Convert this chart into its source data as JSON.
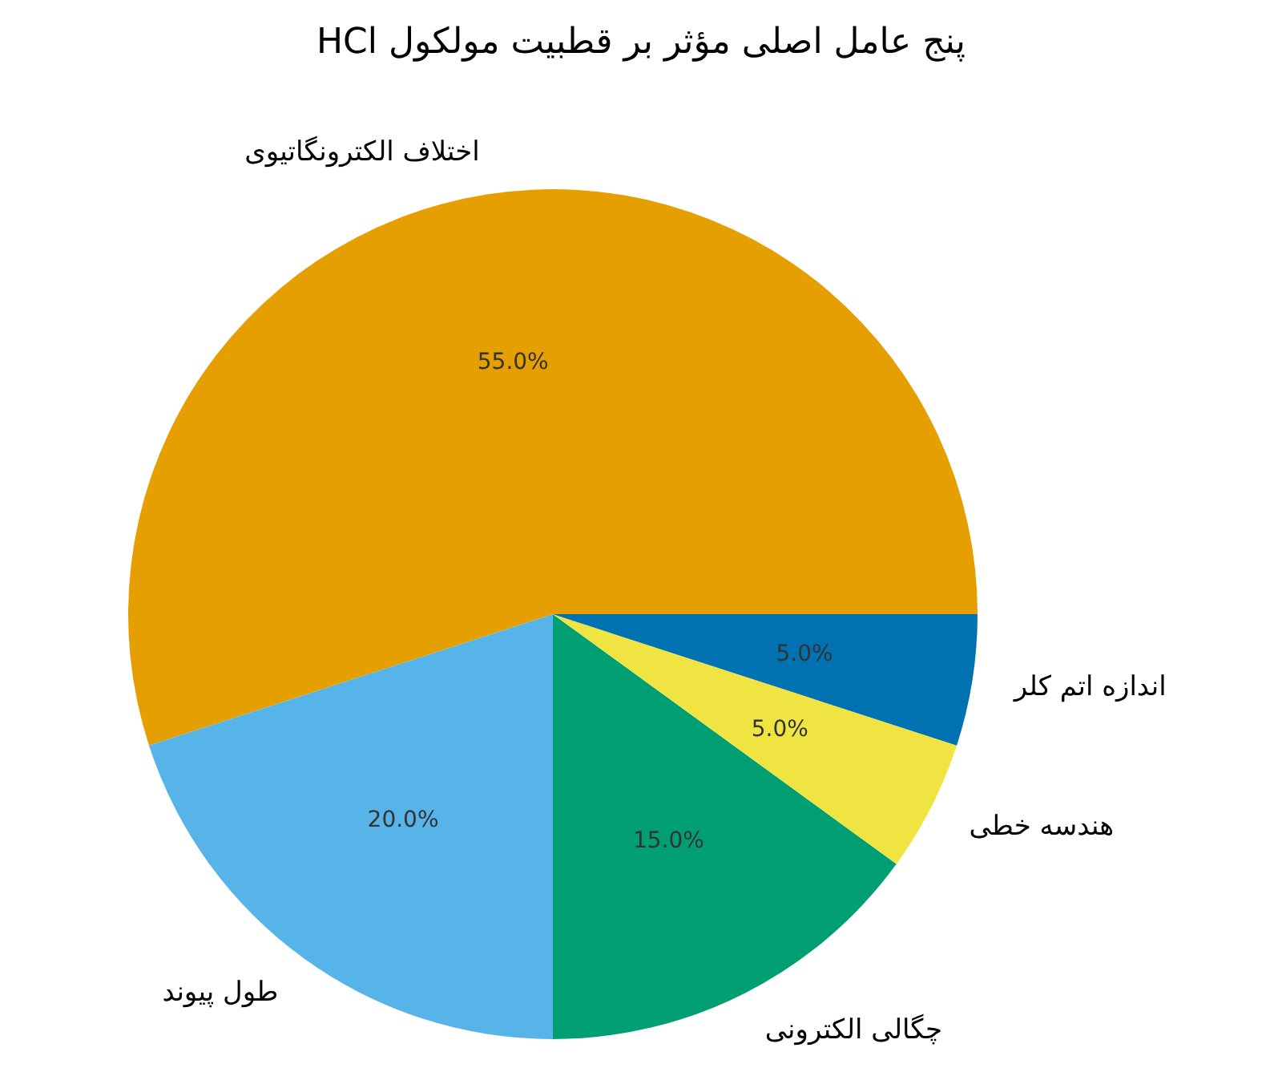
{
  "chart_data": {
    "type": "pie",
    "title": "پنج عامل اصلی مؤثر بر قطبیت مولکول HCl",
    "categories": [
      "اختلاف الکترونگاتیوی",
      "طول پیوند",
      "چگالی الکترونی",
      "هندسه خطی",
      "اندازه اتم کلر"
    ],
    "values": [
      55,
      20,
      15,
      5,
      5
    ],
    "colors": [
      "#e69f00",
      "#56b4e9",
      "#009e73",
      "#f0e442",
      "#0072b2"
    ],
    "value_labels": [
      "55.0%",
      "20.0%",
      "15.0%",
      "5.0%",
      "5.0%"
    ]
  }
}
